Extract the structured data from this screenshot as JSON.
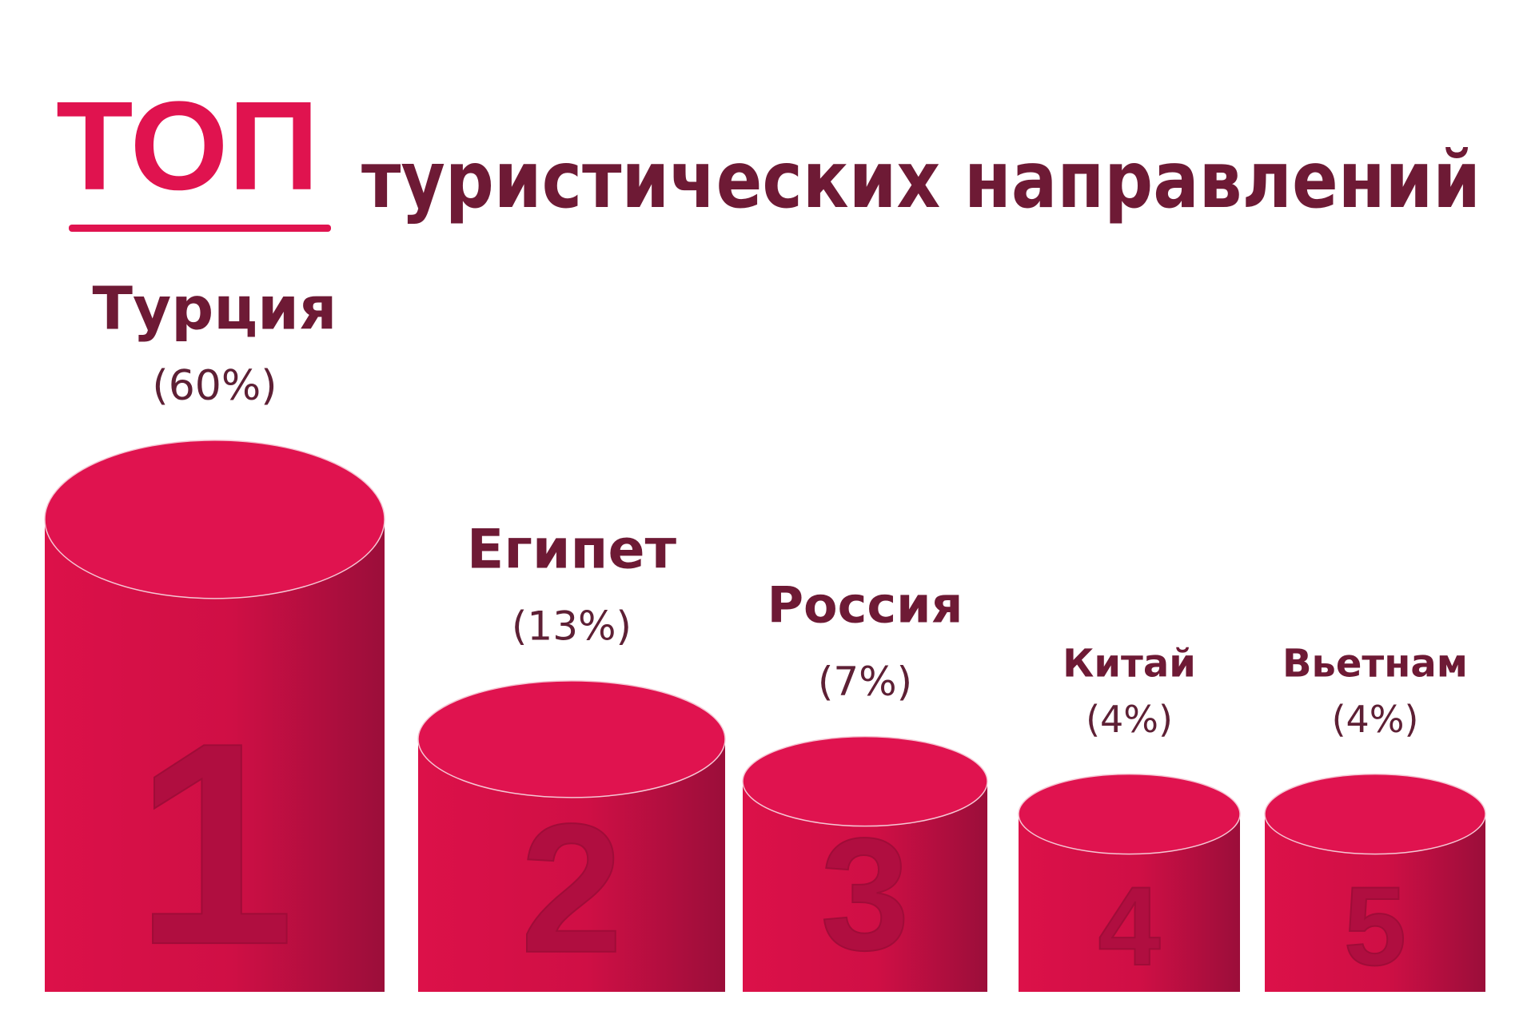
{
  "chart_data": {
    "type": "cylinder",
    "title": "ТОП",
    "subtitle": "туристических направлений",
    "categories": [
      "Турция",
      "Египет",
      "Россия",
      "Китай",
      "Вьетнам"
    ],
    "values": [
      60,
      13,
      7,
      4,
      4
    ],
    "value_labels": [
      "(60%)",
      "(13%)",
      "(7%)",
      "(4%)",
      "(4%)"
    ],
    "ranks": [
      "1",
      "2",
      "3",
      "4",
      "5"
    ],
    "color": "#e0134f"
  }
}
